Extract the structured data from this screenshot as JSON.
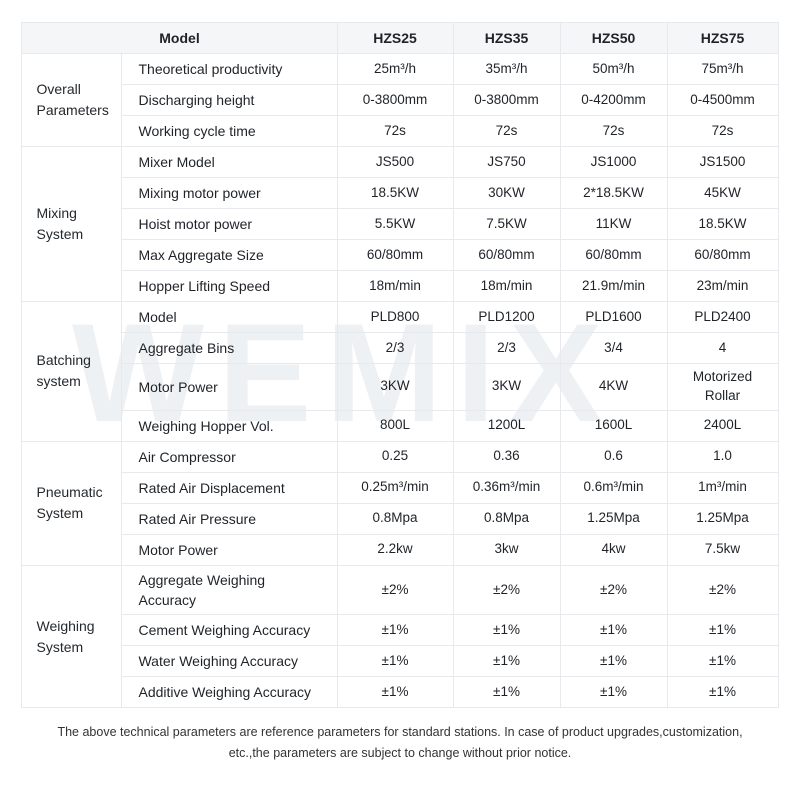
{
  "watermark_text": "WEMIX",
  "colors": {
    "header_bg": "#f5f6f7",
    "border": "#e7e9ec",
    "watermark": "#eef1f3"
  },
  "table": {
    "header": {
      "model_label": "Model",
      "columns": [
        "HZS25",
        "HZS35",
        "HZS50",
        "HZS75"
      ]
    },
    "groups": [
      {
        "label": "Overall Parameters",
        "rows": [
          {
            "param": "Theoretical productivity",
            "values": [
              "25m³/h",
              "35m³/h",
              "50m³/h",
              "75m³/h"
            ]
          },
          {
            "param": "Discharging height",
            "values": [
              "0-3800mm",
              "0-3800mm",
              "0-4200mm",
              "0-4500mm"
            ]
          },
          {
            "param": "Working cycle time",
            "values": [
              "72s",
              "72s",
              "72s",
              "72s"
            ]
          }
        ]
      },
      {
        "label": "Mixing System",
        "rows": [
          {
            "param": "Mixer Model",
            "values": [
              "JS500",
              "JS750",
              "JS1000",
              "JS1500"
            ]
          },
          {
            "param": "Mixing motor power",
            "values": [
              "18.5KW",
              "30KW",
              "2*18.5KW",
              "45KW"
            ]
          },
          {
            "param": "Hoist motor power",
            "values": [
              "5.5KW",
              "7.5KW",
              "11KW",
              "18.5KW"
            ]
          },
          {
            "param": "Max Aggregate Size",
            "values": [
              "60/80mm",
              "60/80mm",
              "60/80mm",
              "60/80mm"
            ]
          },
          {
            "param": "Hopper Lifting Speed",
            "values": [
              "18m/min",
              "18m/min",
              "21.9m/min",
              "23m/min"
            ]
          }
        ]
      },
      {
        "label": "Batching system",
        "rows": [
          {
            "param": "Model",
            "values": [
              "PLD800",
              "PLD1200",
              "PLD1600",
              "PLD2400"
            ]
          },
          {
            "param": "Aggregate Bins",
            "values": [
              "2/3",
              "2/3",
              "3/4",
              "4"
            ]
          },
          {
            "param": "Motor Power",
            "values": [
              "3KW",
              "3KW",
              "4KW",
              "Motorized Rollar"
            ]
          },
          {
            "param": "Weighing Hopper Vol.",
            "values": [
              "800L",
              "1200L",
              "1600L",
              "2400L"
            ]
          }
        ]
      },
      {
        "label": "Pneumatic System",
        "rows": [
          {
            "param": "Air Compressor",
            "values": [
              "0.25",
              "0.36",
              "0.6",
              "1.0"
            ]
          },
          {
            "param": "Rated Air Displacement",
            "values": [
              "0.25m³/min",
              "0.36m³/min",
              "0.6m³/min",
              "1m³/min"
            ]
          },
          {
            "param": "Rated Air Pressure",
            "values": [
              "0.8Mpa",
              "0.8Mpa",
              "1.25Mpa",
              "1.25Mpa"
            ]
          },
          {
            "param": "Motor Power",
            "values": [
              "2.2kw",
              "3kw",
              "4kw",
              "7.5kw"
            ]
          }
        ]
      },
      {
        "label": "Weighing System",
        "rows": [
          {
            "param": "Aggregate Weighing Accuracy",
            "values": [
              "±2%",
              "±2%",
              "±2%",
              "±2%"
            ]
          },
          {
            "param": "Cement Weighing Accuracy",
            "values": [
              "±1%",
              "±1%",
              "±1%",
              "±1%"
            ]
          },
          {
            "param": "Water Weighing Accuracy",
            "values": [
              "±1%",
              "±1%",
              "±1%",
              "±1%"
            ]
          },
          {
            "param": "Additive Weighing Accuracy",
            "values": [
              "±1%",
              "±1%",
              "±1%",
              "±1%"
            ]
          }
        ]
      }
    ]
  },
  "footer": {
    "line1": "The above technical parameters are reference parameters for standard stations. In case of product upgrades,customization,",
    "line2": "etc.,the parameters are subject to change without prior notice."
  }
}
